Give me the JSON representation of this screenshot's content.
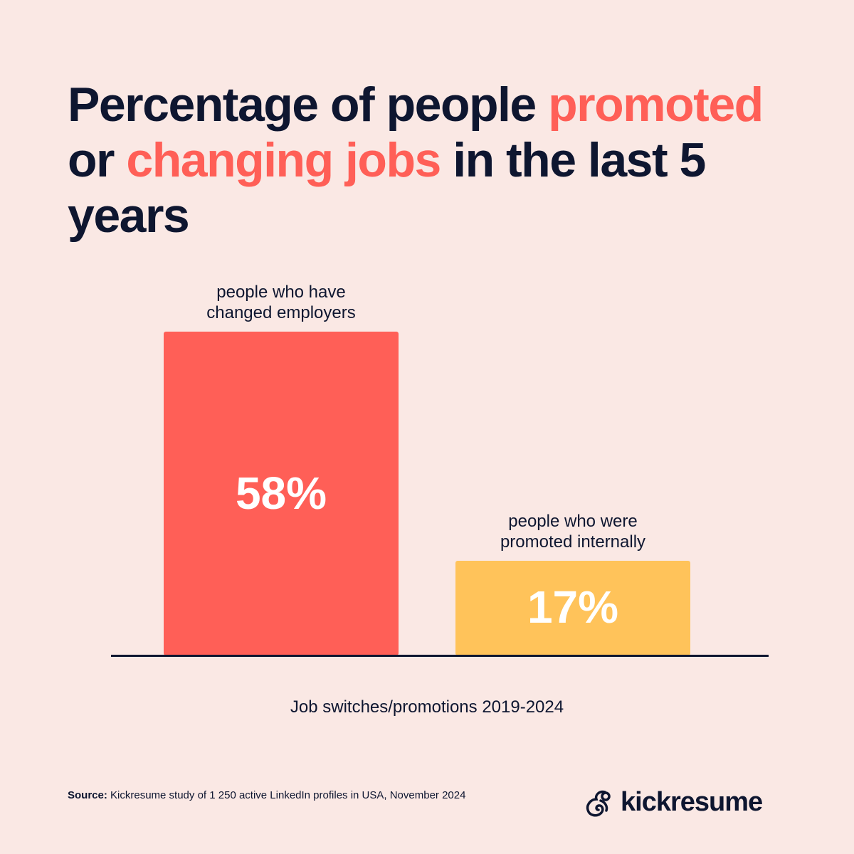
{
  "title": {
    "part1": "Percentage of people ",
    "highlight1": "promoted",
    "part2": " or ",
    "highlight2": "changing jobs",
    "part3": " in the last 5 years"
  },
  "chart_data": {
    "type": "bar",
    "categories": [
      "people who have changed employers",
      "people who were promoted internally"
    ],
    "values": [
      58,
      17
    ],
    "value_labels": [
      "58%",
      "17%"
    ],
    "colors": [
      "#FF5F57",
      "#FFC35A"
    ],
    "xlabel": "Job switches/promotions 2019-2024",
    "ylabel": "",
    "ylim": [
      0,
      58
    ],
    "grid": false
  },
  "source": {
    "label": "Source:",
    "text": " Kickresume study of 1 250 active LinkedIn profiles in USA, November 2024"
  },
  "brand": {
    "name": "kickresume",
    "icon": "kickresume-chameleon-logo"
  },
  "colors": {
    "background": "#FAE8E4",
    "text": "#0E1630",
    "accent": "#FF5F57",
    "secondary": "#FFC35A"
  }
}
